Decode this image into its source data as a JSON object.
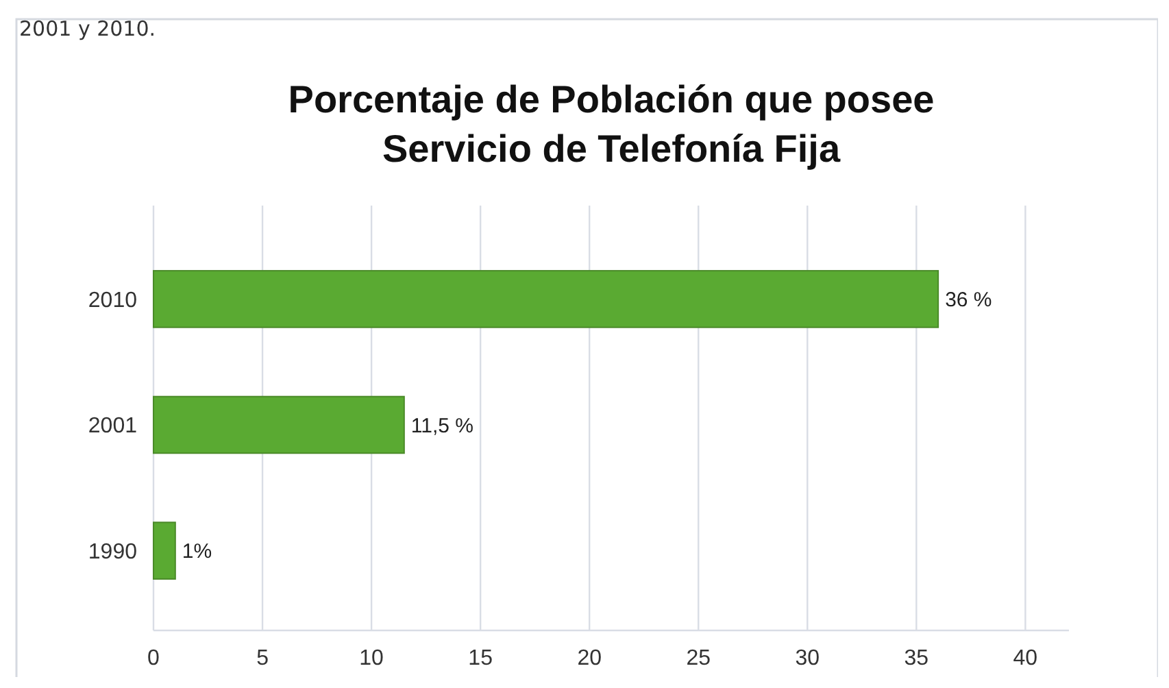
{
  "chart_data": {
    "type": "bar",
    "orientation": "horizontal",
    "title": "Porcentaje de Población que posee\nServicio de Telefonía Fija",
    "categories": [
      "2010",
      "2001",
      "1990"
    ],
    "values": [
      36,
      11.5,
      1
    ],
    "color": "#5aaa32",
    "value_labels": [
      "36 %",
      "11,5 %",
      "1%"
    ],
    "xlim": [
      0,
      42
    ],
    "xticks": [
      0,
      5,
      10,
      15,
      20,
      25,
      30,
      35,
      40
    ],
    "grid": "x",
    "annotations": [
      "2001 y 2010."
    ]
  }
}
